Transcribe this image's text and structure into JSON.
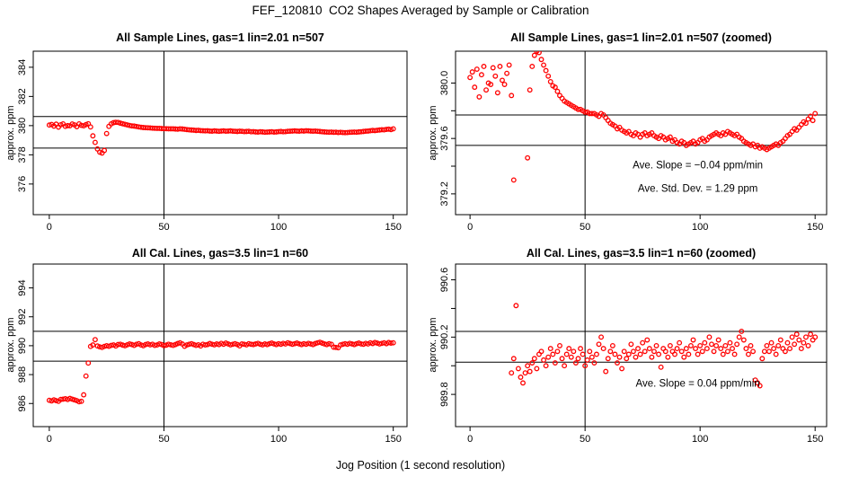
{
  "figure": {
    "title": "FEF_120810  CO2 Shapes Averaged by Sample or Calibration",
    "xlabel": "Jog Position (1 second resolution)",
    "ylabel": "approx. ppm",
    "point_color": "#ff0000",
    "axis_color": "#000000"
  },
  "chart_data": [
    {
      "type": "scatter",
      "title": "All Sample Lines, gas=1 lin=2.01 n=507",
      "series": "sample",
      "xlim": [
        -7,
        156
      ],
      "ylim": [
        373.9,
        385.1
      ],
      "xticks": [
        0,
        50,
        100,
        150
      ],
      "yticks": [
        [
          376,
          "376"
        ],
        [
          378,
          "378"
        ],
        [
          380,
          "380"
        ],
        [
          382,
          "382"
        ],
        [
          384,
          "384"
        ]
      ],
      "hlines": [
        380.62,
        378.46
      ],
      "vlines": [
        50
      ],
      "annotations": []
    },
    {
      "type": "scatter",
      "title": "All Sample Lines, gas=1 lin=2.01 n=507 (zoomed)",
      "series": "sample",
      "xlim": [
        -6.3,
        155
      ],
      "ylim": [
        379.05,
        380.23
      ],
      "xticks": [
        0,
        50,
        100,
        150
      ],
      "yticks": [
        [
          379.2,
          "379.2"
        ],
        [
          379.4,
          ""
        ],
        [
          379.6,
          "379.6"
        ],
        [
          379.8,
          ""
        ],
        [
          380.0,
          "380.0"
        ]
      ],
      "hlines": [
        379.77,
        379.55
      ],
      "vlines": [
        50
      ],
      "annotations": [
        {
          "text": "Ave. Slope =  −0.04  ppm/min",
          "x": 99,
          "y": 379.41
        },
        {
          "text": "Ave. Std. Dev. =  1.29  ppm",
          "x": 99,
          "y": 379.24
        }
      ]
    },
    {
      "type": "scatter",
      "title": "All Cal. Lines, gas=3.5 lin=1 n=60",
      "series": "cal",
      "xlim": [
        -7,
        156
      ],
      "ylim": [
        984.4,
        995.65
      ],
      "xticks": [
        0,
        50,
        100,
        150
      ],
      "yticks": [
        [
          986,
          "986"
        ],
        [
          988,
          "988"
        ],
        [
          990,
          "990"
        ],
        [
          992,
          "992"
        ],
        [
          994,
          "994"
        ]
      ],
      "hlines": [
        991.0,
        988.93
      ],
      "vlines": [
        50
      ],
      "annotations": []
    },
    {
      "type": "scatter",
      "title": "All Cal. Lines, gas=3.5 lin=1 n=60 (zoomed)",
      "series": "cal",
      "xlim": [
        -6.3,
        155
      ],
      "ylim": [
        989.575,
        990.71
      ],
      "xticks": [
        0,
        50,
        100,
        150
      ],
      "yticks": [
        [
          989.8,
          "989.8"
        ],
        [
          990.0,
          ""
        ],
        [
          990.2,
          "990.2"
        ],
        [
          990.4,
          ""
        ],
        [
          990.6,
          "990.6"
        ]
      ],
      "hlines": [
        990.24,
        990.025
      ],
      "vlines": [
        50
      ],
      "annotations": [
        {
          "text": "Ave. Slope =  0.04  ppm/min",
          "x": 99,
          "y": 989.88
        }
      ]
    }
  ],
  "series": {
    "sample": [
      [
        0,
        380.04
      ],
      [
        1,
        380.08
      ],
      [
        2,
        379.97
      ],
      [
        3,
        380.1
      ],
      [
        4,
        379.9
      ],
      [
        5,
        380.06
      ],
      [
        6,
        380.12
      ],
      [
        7,
        379.95
      ],
      [
        8,
        380.0
      ],
      [
        9,
        379.99
      ],
      [
        10,
        380.11
      ],
      [
        11,
        380.05
      ],
      [
        12,
        379.93
      ],
      [
        13,
        380.12
      ],
      [
        14,
        380.02
      ],
      [
        15,
        379.99
      ],
      [
        16,
        380.07
      ],
      [
        17,
        380.13
      ],
      [
        18,
        379.91
      ],
      [
        19,
        379.3
      ],
      [
        20,
        378.85
      ],
      [
        21,
        378.4
      ],
      [
        22,
        378.18
      ],
      [
        23,
        378.12
      ],
      [
        24,
        378.3
      ],
      [
        25,
        379.46
      ],
      [
        26,
        379.95
      ],
      [
        27,
        380.12
      ],
      [
        28,
        380.2
      ],
      [
        29,
        380.23
      ],
      [
        30,
        380.22
      ],
      [
        31,
        380.17
      ],
      [
        32,
        380.13
      ],
      [
        33,
        380.09
      ],
      [
        34,
        380.05
      ],
      [
        35,
        380.01
      ],
      [
        36,
        379.98
      ],
      [
        37,
        379.97
      ],
      [
        38,
        379.94
      ],
      [
        39,
        379.91
      ],
      [
        40,
        379.89
      ],
      [
        41,
        379.87
      ],
      [
        42,
        379.86
      ],
      [
        43,
        379.85
      ],
      [
        44,
        379.84
      ],
      [
        45,
        379.83
      ],
      [
        46,
        379.82
      ],
      [
        47,
        379.81
      ],
      [
        48,
        379.81
      ],
      [
        49,
        379.8
      ],
      [
        50,
        379.79
      ],
      [
        51,
        379.79
      ],
      [
        52,
        379.78
      ],
      [
        53,
        379.78
      ],
      [
        54,
        379.78
      ],
      [
        55,
        379.77
      ],
      [
        56,
        379.76
      ],
      [
        57,
        379.78
      ],
      [
        58,
        379.77
      ],
      [
        59,
        379.75
      ],
      [
        60,
        379.73
      ],
      [
        61,
        379.71
      ],
      [
        62,
        379.7
      ],
      [
        63,
        379.69
      ],
      [
        64,
        379.67
      ],
      [
        65,
        379.68
      ],
      [
        66,
        379.66
      ],
      [
        67,
        379.65
      ],
      [
        68,
        379.64
      ],
      [
        69,
        379.65
      ],
      [
        70,
        379.63
      ],
      [
        71,
        379.62
      ],
      [
        72,
        379.64
      ],
      [
        73,
        379.63
      ],
      [
        74,
        379.61
      ],
      [
        75,
        379.63
      ],
      [
        76,
        379.64
      ],
      [
        77,
        379.62
      ],
      [
        78,
        379.63
      ],
      [
        79,
        379.64
      ],
      [
        80,
        379.62
      ],
      [
        81,
        379.61
      ],
      [
        82,
        379.6
      ],
      [
        83,
        379.62
      ],
      [
        84,
        379.61
      ],
      [
        85,
        379.59
      ],
      [
        86,
        379.6
      ],
      [
        87,
        379.61
      ],
      [
        88,
        379.58
      ],
      [
        89,
        379.59
      ],
      [
        90,
        379.57
      ],
      [
        91,
        379.56
      ],
      [
        92,
        379.58
      ],
      [
        93,
        379.57
      ],
      [
        94,
        379.55
      ],
      [
        95,
        379.56
      ],
      [
        96,
        379.57
      ],
      [
        97,
        379.58
      ],
      [
        98,
        379.56
      ],
      [
        99,
        379.57
      ],
      [
        100,
        379.59
      ],
      [
        101,
        379.6
      ],
      [
        102,
        379.58
      ],
      [
        103,
        379.59
      ],
      [
        104,
        379.61
      ],
      [
        105,
        379.62
      ],
      [
        106,
        379.63
      ],
      [
        107,
        379.64
      ],
      [
        108,
        379.63
      ],
      [
        109,
        379.62
      ],
      [
        110,
        379.64
      ],
      [
        111,
        379.63
      ],
      [
        112,
        379.65
      ],
      [
        113,
        379.64
      ],
      [
        114,
        379.63
      ],
      [
        115,
        379.62
      ],
      [
        116,
        379.63
      ],
      [
        117,
        379.61
      ],
      [
        118,
        379.6
      ],
      [
        119,
        379.58
      ],
      [
        120,
        379.57
      ],
      [
        121,
        379.56
      ],
      [
        122,
        379.55
      ],
      [
        123,
        379.56
      ],
      [
        124,
        379.54
      ],
      [
        125,
        379.55
      ],
      [
        126,
        379.53
      ],
      [
        127,
        379.54
      ],
      [
        128,
        379.53
      ],
      [
        129,
        379.52
      ],
      [
        130,
        379.53
      ],
      [
        131,
        379.54
      ],
      [
        132,
        379.55
      ],
      [
        133,
        379.56
      ],
      [
        134,
        379.55
      ],
      [
        135,
        379.57
      ],
      [
        136,
        379.58
      ],
      [
        137,
        379.6
      ],
      [
        138,
        379.62
      ],
      [
        139,
        379.63
      ],
      [
        140,
        379.65
      ],
      [
        141,
        379.67
      ],
      [
        142,
        379.66
      ],
      [
        143,
        379.68
      ],
      [
        144,
        379.7
      ],
      [
        145,
        379.72
      ],
      [
        146,
        379.71
      ],
      [
        147,
        379.74
      ],
      [
        148,
        379.76
      ],
      [
        149,
        379.73
      ],
      [
        150,
        379.78
      ]
    ],
    "cal": [
      [
        0,
        986.22
      ],
      [
        1,
        986.18
      ],
      [
        2,
        986.25
      ],
      [
        3,
        986.2
      ],
      [
        4,
        986.15
      ],
      [
        5,
        986.28
      ],
      [
        6,
        986.3
      ],
      [
        7,
        986.33
      ],
      [
        8,
        986.28
      ],
      [
        9,
        986.35
      ],
      [
        10,
        986.3
      ],
      [
        11,
        986.25
      ],
      [
        12,
        986.2
      ],
      [
        13,
        986.12
      ],
      [
        14,
        986.15
      ],
      [
        15,
        986.6
      ],
      [
        16,
        987.9
      ],
      [
        17,
        988.8
      ],
      [
        18,
        989.95
      ],
      [
        19,
        990.05
      ],
      [
        20,
        990.42
      ],
      [
        21,
        989.98
      ],
      [
        22,
        989.92
      ],
      [
        23,
        989.88
      ],
      [
        24,
        989.95
      ],
      [
        25,
        990.0
      ],
      [
        26,
        989.96
      ],
      [
        27,
        990.02
      ],
      [
        28,
        990.05
      ],
      [
        29,
        989.98
      ],
      [
        30,
        990.08
      ],
      [
        31,
        990.1
      ],
      [
        32,
        990.04
      ],
      [
        33,
        990.0
      ],
      [
        34,
        990.06
      ],
      [
        35,
        990.12
      ],
      [
        36,
        990.08
      ],
      [
        37,
        990.02
      ],
      [
        38,
        990.1
      ],
      [
        39,
        990.14
      ],
      [
        40,
        990.05
      ],
      [
        41,
        990.0
      ],
      [
        42,
        990.08
      ],
      [
        43,
        990.12
      ],
      [
        44,
        990.06
      ],
      [
        45,
        990.1
      ],
      [
        46,
        990.02
      ],
      [
        47,
        990.05
      ],
      [
        48,
        990.12
      ],
      [
        49,
        990.08
      ],
      [
        50,
        990.0
      ],
      [
        51,
        990.04
      ],
      [
        52,
        990.1
      ],
      [
        53,
        990.06
      ],
      [
        54,
        990.02
      ],
      [
        55,
        990.08
      ],
      [
        56,
        990.15
      ],
      [
        57,
        990.2
      ],
      [
        58,
        990.12
      ],
      [
        59,
        989.96
      ],
      [
        60,
        990.05
      ],
      [
        61,
        990.1
      ],
      [
        62,
        990.14
      ],
      [
        63,
        990.08
      ],
      [
        64,
        990.02
      ],
      [
        65,
        990.06
      ],
      [
        66,
        989.98
      ],
      [
        67,
        990.1
      ],
      [
        68,
        990.05
      ],
      [
        69,
        990.08
      ],
      [
        70,
        990.15
      ],
      [
        71,
        990.1
      ],
      [
        72,
        990.06
      ],
      [
        73,
        990.12
      ],
      [
        74,
        990.08
      ],
      [
        75,
        990.16
      ],
      [
        76,
        990.1
      ],
      [
        77,
        990.18
      ],
      [
        78,
        990.12
      ],
      [
        79,
        990.06
      ],
      [
        80,
        990.1
      ],
      [
        81,
        990.14
      ],
      [
        82,
        990.08
      ],
      [
        83,
        989.99
      ],
      [
        84,
        990.12
      ],
      [
        85,
        990.1
      ],
      [
        86,
        990.06
      ],
      [
        87,
        990.14
      ],
      [
        88,
        990.1
      ],
      [
        89,
        990.08
      ],
      [
        90,
        990.12
      ],
      [
        91,
        990.16
      ],
      [
        92,
        990.1
      ],
      [
        93,
        990.06
      ],
      [
        94,
        990.12
      ],
      [
        95,
        990.08
      ],
      [
        96,
        990.14
      ],
      [
        97,
        990.18
      ],
      [
        98,
        990.12
      ],
      [
        99,
        990.08
      ],
      [
        100,
        990.14
      ],
      [
        101,
        990.1
      ],
      [
        102,
        990.16
      ],
      [
        103,
        990.12
      ],
      [
        104,
        990.2
      ],
      [
        105,
        990.15
      ],
      [
        106,
        990.1
      ],
      [
        107,
        990.14
      ],
      [
        108,
        990.18
      ],
      [
        109,
        990.12
      ],
      [
        110,
        990.08
      ],
      [
        111,
        990.14
      ],
      [
        112,
        990.1
      ],
      [
        113,
        990.16
      ],
      [
        114,
        990.12
      ],
      [
        115,
        990.08
      ],
      [
        116,
        990.15
      ],
      [
        117,
        990.2
      ],
      [
        118,
        990.24
      ],
      [
        119,
        990.18
      ],
      [
        120,
        990.12
      ],
      [
        121,
        990.08
      ],
      [
        122,
        990.14
      ],
      [
        123,
        990.1
      ],
      [
        124,
        989.9
      ],
      [
        125,
        989.88
      ],
      [
        126,
        989.86
      ],
      [
        127,
        990.05
      ],
      [
        128,
        990.1
      ],
      [
        129,
        990.14
      ],
      [
        130,
        990.1
      ],
      [
        131,
        990.16
      ],
      [
        132,
        990.12
      ],
      [
        133,
        990.08
      ],
      [
        134,
        990.14
      ],
      [
        135,
        990.18
      ],
      [
        136,
        990.12
      ],
      [
        137,
        990.1
      ],
      [
        138,
        990.16
      ],
      [
        139,
        990.12
      ],
      [
        140,
        990.2
      ],
      [
        141,
        990.15
      ],
      [
        142,
        990.22
      ],
      [
        143,
        990.18
      ],
      [
        144,
        990.12
      ],
      [
        145,
        990.16
      ],
      [
        146,
        990.2
      ],
      [
        147,
        990.14
      ],
      [
        148,
        990.22
      ],
      [
        149,
        990.18
      ],
      [
        150,
        990.2
      ]
    ]
  }
}
